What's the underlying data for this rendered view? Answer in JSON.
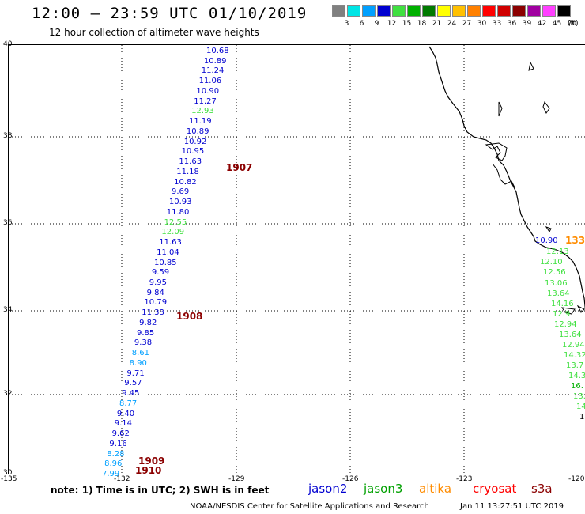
{
  "header": {
    "title": "12:00 – 23:59 UTC 01/10/2019",
    "subtitle": "12 hour collection of altimeter wave heights"
  },
  "legend": {
    "unit": "(ft)",
    "bins": [
      {
        "label": "3",
        "color": "#808080"
      },
      {
        "label": "6",
        "color": "#00e5e5"
      },
      {
        "label": "9",
        "color": "#00a0ff"
      },
      {
        "label": "12",
        "color": "#0000d0"
      },
      {
        "label": "15",
        "color": "#40e040"
      },
      {
        "label": "18",
        "color": "#00b000"
      },
      {
        "label": "21",
        "color": "#007a00"
      },
      {
        "label": "24",
        "color": "#ffff00"
      },
      {
        "label": "27",
        "color": "#ffc000"
      },
      {
        "label": "30",
        "color": "#ff8000"
      },
      {
        "label": "33",
        "color": "#ff0000"
      },
      {
        "label": "36",
        "color": "#d00000"
      },
      {
        "label": "39",
        "color": "#8b0000"
      },
      {
        "label": "42",
        "color": "#a000a0"
      },
      {
        "label": "45",
        "color": "#ff40ff"
      },
      {
        "label": "70",
        "color": "#000000"
      }
    ]
  },
  "axes": {
    "lon_ticks": [
      "-135",
      "-132",
      "-129",
      "-126",
      "-123",
      "-120"
    ],
    "lat_ticks": [
      "40",
      "38",
      "36",
      "34",
      "32",
      "30"
    ]
  },
  "track_west": [
    {
      "v": "10.68",
      "c": "#0000d0"
    },
    {
      "v": "10.89",
      "c": "#0000d0"
    },
    {
      "v": "11.24",
      "c": "#0000d0"
    },
    {
      "v": "11.06",
      "c": "#0000d0"
    },
    {
      "v": "10.90",
      "c": "#0000d0"
    },
    {
      "v": "11.27",
      "c": "#0000d0"
    },
    {
      "v": "12.93",
      "c": "#40e040"
    },
    {
      "v": "11.19",
      "c": "#0000d0"
    },
    {
      "v": "10.89",
      "c": "#0000d0"
    },
    {
      "v": "10.92",
      "c": "#0000d0"
    },
    {
      "v": "10.95",
      "c": "#0000d0"
    },
    {
      "v": "11.63",
      "c": "#0000d0"
    },
    {
      "v": "11.18",
      "c": "#0000d0"
    },
    {
      "v": "10.82",
      "c": "#0000d0"
    },
    {
      "v": "9.69",
      "c": "#0000d0"
    },
    {
      "v": "10.93",
      "c": "#0000d0"
    },
    {
      "v": "11.80",
      "c": "#0000d0"
    },
    {
      "v": "12.55",
      "c": "#40e040"
    },
    {
      "v": "12.09",
      "c": "#40e040"
    },
    {
      "v": "11.63",
      "c": "#0000d0"
    },
    {
      "v": "11.04",
      "c": "#0000d0"
    },
    {
      "v": "10.85",
      "c": "#0000d0"
    },
    {
      "v": "9.59",
      "c": "#0000d0"
    },
    {
      "v": "9.95",
      "c": "#0000d0"
    },
    {
      "v": "9.84",
      "c": "#0000d0"
    },
    {
      "v": "10.79",
      "c": "#0000d0"
    },
    {
      "v": "11.33",
      "c": "#0000d0"
    },
    {
      "v": "9.82",
      "c": "#0000d0"
    },
    {
      "v": "9.85",
      "c": "#0000d0"
    },
    {
      "v": "9.38",
      "c": "#0000d0"
    },
    {
      "v": "8.61",
      "c": "#00a0ff"
    },
    {
      "v": "8.90",
      "c": "#00a0ff"
    },
    {
      "v": "9.71",
      "c": "#0000d0"
    },
    {
      "v": "9.57",
      "c": "#0000d0"
    },
    {
      "v": "9.45",
      "c": "#0000d0"
    },
    {
      "v": "8.77",
      "c": "#00a0ff"
    },
    {
      "v": "9.40",
      "c": "#0000d0"
    },
    {
      "v": "9.14",
      "c": "#0000d0"
    },
    {
      "v": "9.62",
      "c": "#0000d0"
    },
    {
      "v": "9.16",
      "c": "#0000d0"
    },
    {
      "v": "8.28",
      "c": "#00a0ff"
    },
    {
      "v": "8.96",
      "c": "#00a0ff"
    },
    {
      "v": "7.99",
      "c": "#00a0ff"
    }
  ],
  "track_east": [
    {
      "v": "10.90",
      "c": "#0000d0"
    },
    {
      "v": "12.13",
      "c": "#40e040"
    },
    {
      "v": "12.10",
      "c": "#40e040"
    },
    {
      "v": "12.56",
      "c": "#40e040"
    },
    {
      "v": "13.06",
      "c": "#40e040"
    },
    {
      "v": "13.64",
      "c": "#40e040"
    },
    {
      "v": "14.16",
      "c": "#40e040"
    },
    {
      "v": "12.9",
      "c": "#40e040"
    },
    {
      "v": "12.94",
      "c": "#40e040"
    },
    {
      "v": "13.64",
      "c": "#40e040"
    },
    {
      "v": "12.94",
      "c": "#40e040"
    },
    {
      "v": "14.32",
      "c": "#40e040"
    },
    {
      "v": "13.7",
      "c": "#40e040"
    },
    {
      "v": "14.3",
      "c": "#40e040"
    },
    {
      "v": "16.",
      "c": "#00b000"
    },
    {
      "v": "13.",
      "c": "#40e040"
    },
    {
      "v": "14",
      "c": "#40e040"
    },
    {
      "v": "1",
      "c": "#000000"
    }
  ],
  "cycle_labels": {
    "c1907": "1907",
    "c1908": "1908",
    "c1909": "1909",
    "c1910": "1910",
    "c133": "133"
  },
  "footer": {
    "note": "note:  1) Time is in UTC;  2) SWH is in feet",
    "satellites": [
      {
        "name": "jason2",
        "color": "#0000d0"
      },
      {
        "name": "jason3",
        "color": "#00a000"
      },
      {
        "name": "altika",
        "color": "#ff8c00"
      },
      {
        "name": "cryosat",
        "color": "#ff0000"
      },
      {
        "name": "s3a",
        "color": "#8b0000"
      }
    ],
    "credit": "NOAA/NESDIS Center for Satellite Applications and Research",
    "timestamp": "Jan 11 13:27:51 UTC 2019"
  }
}
